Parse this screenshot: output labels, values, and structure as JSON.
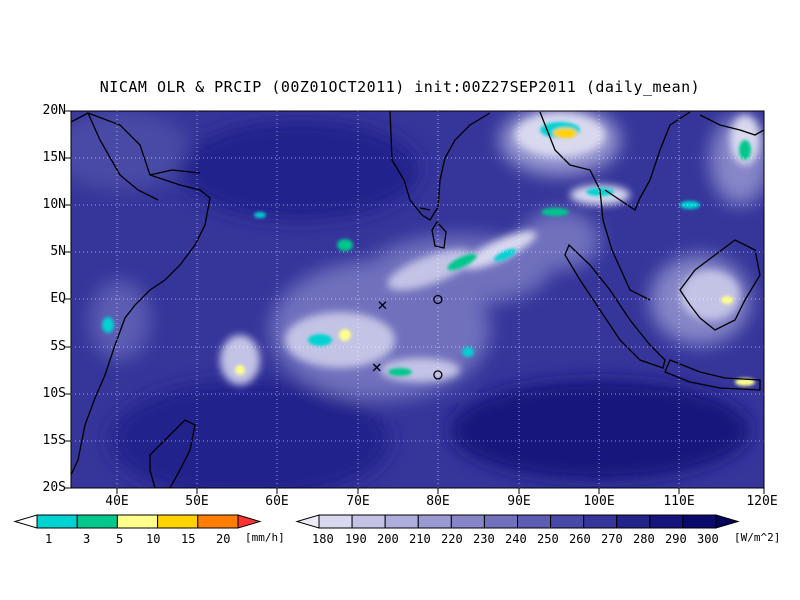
{
  "title": "NICAM OLR & PRCIP (00Z01OCT2011) init:00Z27SEP2011 (daily_mean)",
  "lat_labels": [
    "20N",
    "15N",
    "10N",
    "5N",
    "EQ",
    "5S",
    "10S",
    "15S",
    "20S"
  ],
  "lon_labels": [
    "40E",
    "50E",
    "60E",
    "70E",
    "80E",
    "90E",
    "100E",
    "110E",
    "120E"
  ],
  "precip_colorbar": {
    "labels": [
      "1",
      "3",
      "5",
      "10",
      "15",
      "20"
    ],
    "unit": "[mm/h]",
    "colors": [
      "#00d2d2",
      "#00c78c",
      "#ffff8c",
      "#ffd200",
      "#ff7d00",
      "#ff3232"
    ]
  },
  "olr_colorbar": {
    "labels": [
      "180",
      "190",
      "200",
      "210",
      "220",
      "230",
      "240",
      "250",
      "260",
      "270",
      "280",
      "290",
      "300"
    ],
    "unit": "[W/m^2]",
    "colors": [
      "#ececf8",
      "#d8d8ef",
      "#c3c3e6",
      "#aeaedc",
      "#9a9ad2",
      "#8585c8",
      "#7070bd",
      "#5c5cb2",
      "#4848a6",
      "#35359a",
      "#23238c",
      "#14147c",
      "#0a0a6c",
      "#04045a"
    ]
  },
  "markers": [
    {
      "type": "x",
      "lon": 73.2,
      "lat": -0.6
    },
    {
      "type": "o",
      "lon": 80.0,
      "lat": 0.0
    },
    {
      "type": "x",
      "lon": 72.5,
      "lat": -7.2
    },
    {
      "type": "o",
      "lon": 80.0,
      "lat": -8.0
    }
  ],
  "domain": {
    "lon_min": 35,
    "lon_max": 120,
    "lat_min": -20,
    "lat_max": 20
  }
}
